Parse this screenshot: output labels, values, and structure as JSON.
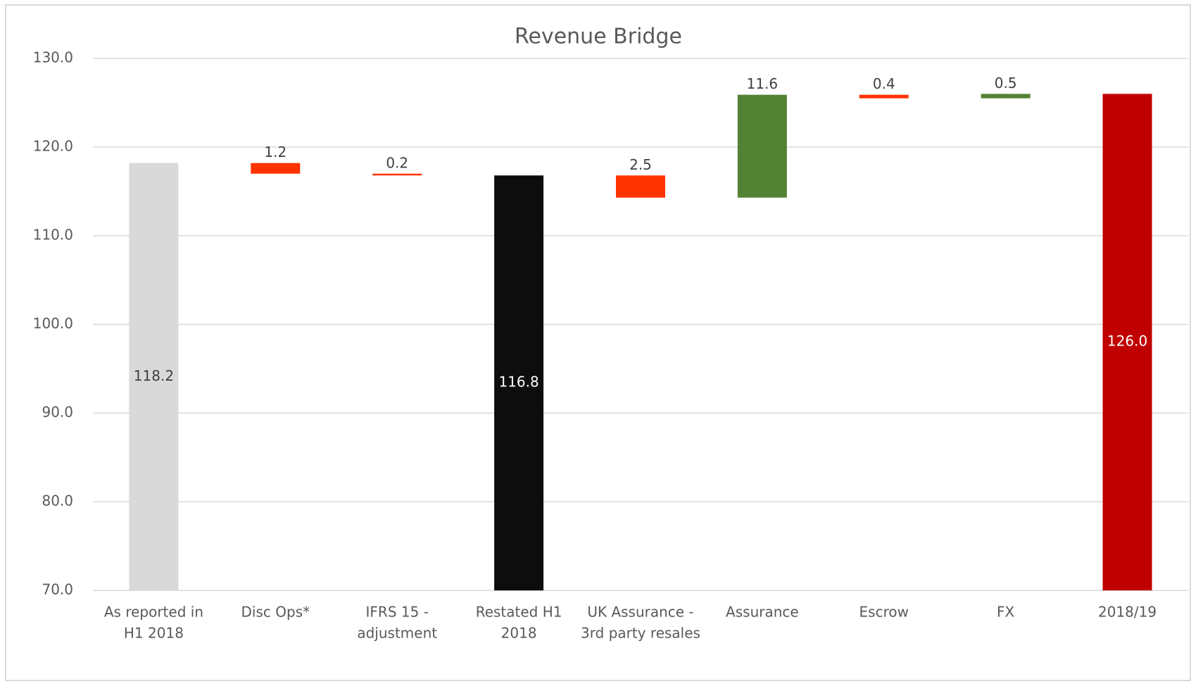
{
  "chart_data": {
    "type": "waterfall",
    "title": "Revenue Bridge",
    "categories": [
      [
        "As reported in",
        "H1 2018"
      ],
      [
        "Disc Ops*"
      ],
      [
        "IFRS 15 -",
        "adjustment"
      ],
      [
        "Restated H1",
        "2018"
      ],
      [
        "UK Assurance -",
        "3rd party resales"
      ],
      [
        "Assurance"
      ],
      [
        "Escrow"
      ],
      [
        "FX"
      ],
      [
        "2018/19"
      ]
    ],
    "values": [
      118.2,
      1.2,
      0.2,
      116.8,
      2.5,
      11.6,
      0.4,
      0.5,
      126.0
    ],
    "value_labels": [
      "118.2",
      "1.2",
      "0.2",
      "116.8",
      "2.5",
      "11.6",
      "0.4",
      "0.5",
      "126.0"
    ],
    "kinds": [
      "total",
      "decrease",
      "decrease",
      "total",
      "decrease",
      "increase",
      "decrease",
      "increase",
      "total"
    ],
    "colors": [
      "#d9d9d9",
      "#ff3300",
      "#ff3300",
      "#0d0d0d",
      "#ff3300",
      "#548235",
      "#ff3300",
      "#548235",
      "#c00000"
    ],
    "label_colors": [
      "#404040",
      "#404040",
      "#404040",
      "#ffffff",
      "#404040",
      "#404040",
      "#404040",
      "#404040",
      "#ffffff"
    ],
    "ylim": [
      70,
      130
    ],
    "yticks": [
      {
        "value": 70,
        "label": "70.0"
      },
      {
        "value": 80,
        "label": "80.0"
      },
      {
        "value": 90,
        "label": "90.0"
      },
      {
        "value": 100,
        "label": "100.0"
      },
      {
        "value": 110,
        "label": "110.0"
      },
      {
        "value": 120,
        "label": "120.0"
      },
      {
        "value": 130,
        "label": "130.0"
      }
    ],
    "grid": true
  }
}
